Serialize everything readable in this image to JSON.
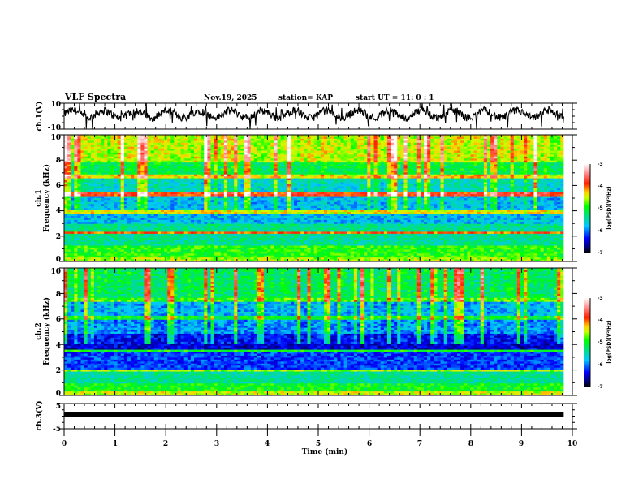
{
  "chart_data": {
    "type": "heatmap",
    "title": "VLF Spectra",
    "header": {
      "date": "Nov.19, 2025",
      "station": "station= KAP",
      "start_ut": "start  UT =   11: 0  : 1"
    },
    "xlabel": "Time  (min)",
    "xlim": [
      0,
      10
    ],
    "x_ticks": [
      "0",
      "1",
      "2",
      "3",
      "4",
      "5",
      "6",
      "7",
      "8",
      "9",
      "10"
    ],
    "data_end_min": 9.83,
    "panels": [
      {
        "id": "ch1-waveform",
        "type": "line",
        "ylabel": "ch.1(V)",
        "ylim": [
          -10,
          10
        ],
        "y_ticks": [
          "10",
          "-10"
        ],
        "mean_v": 1.5,
        "noise_amplitude_v": 6
      },
      {
        "id": "ch1-spectrogram",
        "type": "heatmap",
        "ylabel_line1": "ch.1",
        "ylabel_line2": "Frequency  (kHz)",
        "ylim": [
          0,
          10
        ],
        "y_ticks": [
          "10",
          "8",
          "6",
          "4",
          "2",
          "0"
        ],
        "colorbar": {
          "label": "log(PSD)(V²/Hz)",
          "range": [
            -7,
            -3
          ],
          "ticks": [
            "-3",
            "-4",
            "-5",
            "-6",
            "-7"
          ]
        },
        "band_profile_khz": [
          {
            "from": 0.0,
            "to": 0.3,
            "level": -4.6
          },
          {
            "from": 0.3,
            "to": 1.2,
            "level": -4.9
          },
          {
            "from": 1.2,
            "to": 2.2,
            "level": -5.4
          },
          {
            "from": 2.2,
            "to": 2.4,
            "level": -4.0
          },
          {
            "from": 2.4,
            "to": 3.0,
            "level": -5.4
          },
          {
            "from": 3.0,
            "to": 3.7,
            "level": -5.8
          },
          {
            "from": 3.7,
            "to": 4.0,
            "level": -4.4
          },
          {
            "from": 4.0,
            "to": 5.2,
            "level": -5.9
          },
          {
            "from": 5.2,
            "to": 5.5,
            "level": -4.0
          },
          {
            "from": 5.5,
            "to": 6.5,
            "level": -5.7
          },
          {
            "from": 6.5,
            "to": 6.8,
            "level": -4.5
          },
          {
            "from": 6.8,
            "to": 7.8,
            "level": -5.3
          },
          {
            "from": 7.8,
            "to": 10.0,
            "level": -4.7
          }
        ]
      },
      {
        "id": "ch2-spectrogram",
        "type": "heatmap",
        "ylabel_line1": "ch.2",
        "ylabel_line2": "Frequency  (kHz)",
        "ylim": [
          0,
          10
        ],
        "y_ticks": [
          "10",
          "8",
          "6",
          "4",
          "2",
          "0"
        ],
        "colorbar": {
          "label": "log(PSD)(V²/Hz)",
          "range": [
            -7,
            -3
          ],
          "ticks": [
            "-3",
            "-4",
            "-5",
            "-6",
            "-7"
          ]
        },
        "band_profile_khz": [
          {
            "from": 0.0,
            "to": 0.3,
            "level": -4.5
          },
          {
            "from": 0.3,
            "to": 1.0,
            "level": -5.0
          },
          {
            "from": 1.0,
            "to": 1.8,
            "level": -5.4
          },
          {
            "from": 1.8,
            "to": 2.1,
            "level": -4.6
          },
          {
            "from": 2.1,
            "to": 3.4,
            "level": -6.2
          },
          {
            "from": 3.4,
            "to": 3.6,
            "level": -5.0
          },
          {
            "from": 3.6,
            "to": 4.8,
            "level": -6.5
          },
          {
            "from": 4.8,
            "to": 6.0,
            "level": -6.1
          },
          {
            "from": 6.0,
            "to": 6.3,
            "level": -5.2
          },
          {
            "from": 6.3,
            "to": 7.3,
            "level": -6.0
          },
          {
            "from": 7.3,
            "to": 7.7,
            "level": -5.0
          },
          {
            "from": 7.7,
            "to": 10.0,
            "level": -5.4
          }
        ]
      },
      {
        "id": "ch3-waveform",
        "type": "line",
        "ylabel": "ch.3(V)",
        "ylim": [
          -5,
          5
        ],
        "y_ticks": [
          "5",
          "-5"
        ],
        "mean_v": 0.8,
        "noise_amplitude_v": 0.3
      }
    ]
  }
}
